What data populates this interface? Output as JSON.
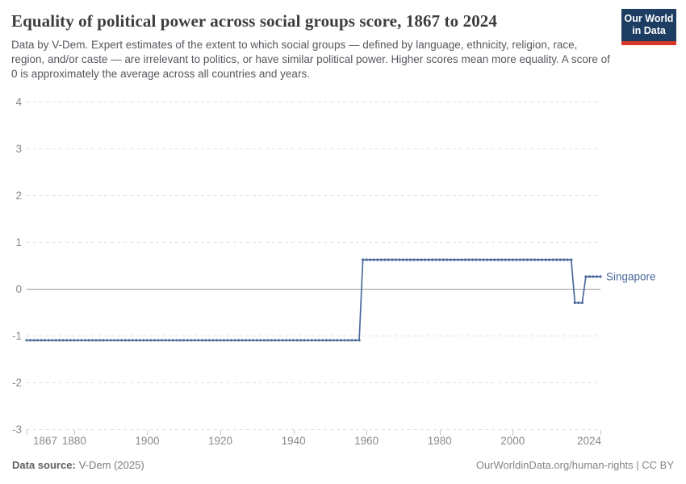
{
  "header": {
    "title": "Equality of political power across social groups score, 1867 to 2024",
    "subtitle": "Data by V-Dem. Expert estimates of the extent to which social groups — defined by language, ethnicity, religion, race, region, and/or caste — are irrelevant to politics, or have similar political power. Higher scores mean more equality. A score of 0 is approximately the average across all countries and years.",
    "logo": {
      "line1": "Our World",
      "line2": "in Data"
    }
  },
  "chart_data": {
    "type": "line",
    "title": "Equality of political power across social groups score",
    "x_range": [
      1867,
      2024
    ],
    "y_range": [
      -3,
      4
    ],
    "x_ticks": [
      1867,
      1880,
      1900,
      1920,
      1940,
      1960,
      1980,
      2000,
      2024
    ],
    "y_ticks": [
      4,
      3,
      2,
      1,
      0,
      -1,
      -2,
      -3
    ],
    "grid": "horizontal-dashed",
    "legend_position": "end-of-line-label",
    "series": [
      {
        "name": "Singapore",
        "color": "#4c6a9c",
        "segments": [
          {
            "start_year": 1867,
            "end_year": 1958,
            "value": -1.1
          },
          {
            "start_year": 1959,
            "end_year": 2016,
            "value": 0.62
          },
          {
            "start_year": 2017,
            "end_year": 2019,
            "value": -0.3
          },
          {
            "start_year": 2020,
            "end_year": 2024,
            "value": 0.26
          }
        ]
      }
    ]
  },
  "footer": {
    "source_label": "Data source:",
    "source_value": "V-Dem (2025)",
    "attribution": "OurWorldinData.org/human-rights | CC BY"
  },
  "colors": {
    "accent_line": "#4c6a9c",
    "logo_bg": "#1d3d63",
    "logo_stripe": "#d7362a",
    "grid": "#e0e0e0",
    "zero_line": "#989898",
    "tick_mark": "#c6c6c6",
    "tick_text": "#8a8a8a"
  }
}
